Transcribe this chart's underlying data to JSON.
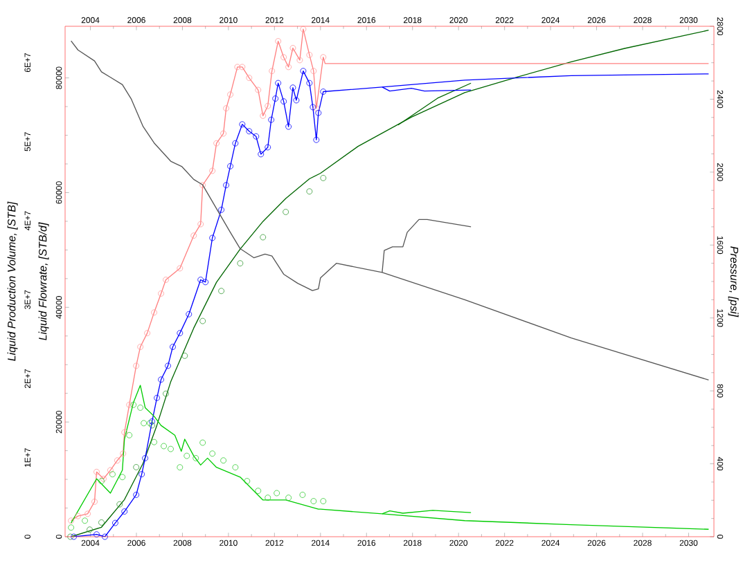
{
  "chart_data": {
    "type": "line",
    "ylabel": "Liquid Flowrate, [STB/d]",
    "y2label": "Pressure, [psi]",
    "y3label": "Liquid Production Volume, [STB]",
    "xlim": [
      2002.9,
      2031.1
    ],
    "xticks": [
      2004,
      2006,
      2008,
      2010,
      2012,
      2014,
      2016,
      2018,
      2020,
      2022,
      2024,
      2026,
      2028,
      2030
    ],
    "x2lim": [
      2002.9,
      2031.1
    ],
    "x2ticks": [
      2004,
      2006,
      2008,
      2010,
      2012,
      2014,
      2016,
      2018,
      2020,
      2022,
      2024,
      2026,
      2028,
      2030
    ],
    "ylim": [
      0,
      89000
    ],
    "yticks": [
      0,
      20000,
      40000,
      60000,
      80000
    ],
    "y2lim": [
      0,
      2800
    ],
    "y2ticks": [
      0,
      400,
      800,
      1200,
      1600,
      2000,
      2400,
      2800
    ],
    "y3lim": [
      0,
      64600000
    ],
    "y3ticks": [
      0,
      {
        "value": 10000000,
        "label": "1E+7"
      },
      {
        "value": 20000000,
        "label": "2E+7"
      },
      {
        "value": 30000000,
        "label": "3E+7"
      },
      {
        "value": 40000000,
        "label": "4E+7"
      },
      {
        "value": 50000000,
        "label": "5E+7"
      },
      {
        "value": 60000000,
        "label": "6E+7"
      }
    ],
    "series": [
      {
        "color": "#ff8080",
        "x": [
          2003.16,
          2003.46,
          2003.88,
          2004.18,
          2004.27,
          2004.57,
          2004.87,
          2005.17,
          2005.42,
          2005.48,
          2005.69,
          2005.99,
          2006.17,
          2006.47,
          2006.77,
          2007.07,
          2007.28,
          2007.89,
          2008.49,
          2008.79,
          2008.88,
          2009.3,
          2009.48,
          2009.78,
          2009.9,
          2010.08,
          2010.39,
          2010.6,
          2010.9,
          2011.29,
          2011.5,
          2011.71,
          2011.89,
          2012.16,
          2012.4,
          2012.61,
          2012.8,
          2013.1,
          2013.25,
          2013.52,
          2013.7,
          2013.82,
          2014.12,
          2014.2,
          2030.87
        ],
        "values": [
          2800,
          3600,
          4000,
          6100,
          11300,
          10100,
          11600,
          13300,
          14500,
          18200,
          23000,
          29800,
          33100,
          35500,
          39100,
          42400,
          44800,
          46800,
          52500,
          54500,
          61300,
          63800,
          68600,
          70300,
          74700,
          77100,
          81900,
          81900,
          80000,
          77900,
          73400,
          75100,
          81200,
          86400,
          83600,
          81900,
          85200,
          83100,
          88500,
          84000,
          81200,
          74700,
          83600,
          82500,
          82500
        ]
      },
      {
        "type": "scatter",
        "marker": "circle",
        "color": "#ff9999",
        "x": [
          2003.16,
          2003.46,
          2003.88,
          2004.18,
          2004.27,
          2004.57,
          2004.87,
          2005.17,
          2005.42,
          2005.48,
          2005.69,
          2005.99,
          2006.17,
          2006.47,
          2006.77,
          2007.07,
          2007.28,
          2007.89,
          2008.49,
          2008.79,
          2008.88,
          2009.3,
          2009.48,
          2009.78,
          2009.9,
          2010.08,
          2010.39,
          2010.6,
          2010.9,
          2011.29,
          2011.5,
          2011.71,
          2011.89,
          2012.16,
          2012.4,
          2012.61,
          2012.8,
          2013.1,
          2013.25,
          2013.52,
          2013.7,
          2013.82,
          2014.12
        ],
        "values": [
          2800,
          3600,
          4000,
          6100,
          11300,
          10100,
          11600,
          13300,
          14500,
          18200,
          23000,
          29800,
          33100,
          35500,
          39100,
          42400,
          44800,
          46800,
          52500,
          54500,
          61300,
          63800,
          68600,
          70300,
          74700,
          77100,
          81900,
          81900,
          80000,
          77900,
          73400,
          75100,
          81200,
          86400,
          83600,
          81900,
          85200,
          83100,
          88500,
          84000,
          81200,
          74700,
          83600
        ]
      },
      {
        "color": "#0000ff",
        "x": [
          2003.28,
          2004.27,
          2004.63,
          2005.08,
          2005.48,
          2005.99,
          2006.23,
          2006.38,
          2006.68,
          2006.89,
          2007.07,
          2007.37,
          2007.58,
          2007.89,
          2008.28,
          2008.79,
          2009.0,
          2009.3,
          2009.69,
          2009.9,
          2010.08,
          2010.3,
          2010.6,
          2010.9,
          2011.2,
          2011.41,
          2011.71,
          2011.86,
          2012.04,
          2012.16,
          2012.4,
          2012.61,
          2012.8,
          2012.95,
          2013.25,
          2013.52,
          2013.67,
          2013.82,
          2013.91,
          2014.12,
          2016.68,
          2020.27,
          2024.9,
          2030.87
        ],
        "values": [
          0,
          400,
          0,
          2400,
          4400,
          7300,
          10900,
          13700,
          20100,
          24200,
          27400,
          29800,
          33100,
          35500,
          38800,
          44800,
          44400,
          52100,
          57000,
          61300,
          64600,
          68600,
          71900,
          70700,
          69800,
          66700,
          67900,
          72700,
          76400,
          79100,
          75900,
          71500,
          78300,
          76100,
          81200,
          79100,
          74900,
          69200,
          73900,
          77600,
          78400,
          79600,
          80400,
          80700
        ]
      },
      {
        "color": "#0000ff",
        "x": [
          2016.68,
          2017.01,
          2017.95,
          2018.52,
          2020.54
        ],
        "values": [
          78400,
          77700,
          78200,
          77700,
          77900
        ]
      },
      {
        "type": "scatter",
        "marker": "circle",
        "color": "#0000ff",
        "x": [
          2003.28,
          2004.27,
          2004.63,
          2005.08,
          2005.48,
          2005.99,
          2006.23,
          2006.38,
          2006.68,
          2006.89,
          2007.07,
          2007.37,
          2007.58,
          2007.89,
          2008.28,
          2008.79,
          2009.0,
          2009.3,
          2009.69,
          2009.9,
          2010.08,
          2010.3,
          2010.6,
          2010.9,
          2011.2,
          2011.41,
          2011.71,
          2011.86,
          2012.04,
          2012.16,
          2012.4,
          2012.61,
          2012.8,
          2012.95,
          2013.25,
          2013.52,
          2013.67,
          2013.82,
          2013.91,
          2014.12
        ],
        "values": [
          0,
          400,
          0,
          2400,
          4400,
          7300,
          10900,
          13700,
          20100,
          24200,
          27400,
          29800,
          33100,
          35500,
          38800,
          44800,
          44400,
          52100,
          57000,
          61300,
          64600,
          68600,
          71900,
          70700,
          69800,
          66700,
          67900,
          72700,
          76400,
          79100,
          75900,
          71500,
          78300,
          76100,
          81200,
          79100,
          74900,
          69200,
          73900,
          77600
        ]
      },
      {
        "color": "#00cc00",
        "x": [
          2003.16,
          2004.27,
          2004.87,
          2005.39,
          2005.48,
          2005.87,
          2006.17,
          2006.38,
          2006.77,
          2007.07,
          2007.67,
          2007.95,
          2008.1,
          2008.49,
          2008.79,
          2009.09,
          2009.48,
          2010.51,
          2011.5,
          2012.49,
          2013.91,
          2014.0,
          2016.68,
          2020.27,
          2024.9,
          2030.87
        ],
        "values": [
          2400,
          10100,
          7600,
          11600,
          17000,
          23400,
          26400,
          22500,
          21000,
          19400,
          17700,
          14900,
          17000,
          14100,
          12500,
          13700,
          12100,
          10400,
          6400,
          6400,
          4800,
          4800,
          4000,
          2800,
          2100,
          1300
        ]
      },
      {
        "color": "#00cc00",
        "x": [
          2016.68,
          2017.01,
          2017.58,
          2018.88,
          2020.54
        ],
        "values": [
          4000,
          4500,
          4100,
          4600,
          4200
        ]
      },
      {
        "type": "scatter",
        "marker": "circle",
        "color": "#33cc33",
        "x": [
          2003.16,
          2003.76,
          2004.48,
          2004.96,
          2005.39,
          2005.69,
          2005.87,
          2006.17,
          2006.32,
          2006.59,
          2006.77,
          2007.19,
          2007.49,
          2007.89,
          2008.19,
          2008.58,
          2008.88,
          2009.3,
          2009.78,
          2010.3,
          2010.81,
          2011.29,
          2011.71,
          2012.1,
          2012.61,
          2013.22,
          2013.7,
          2014.12
        ],
        "values": [
          1600,
          2800,
          9700,
          10900,
          10400,
          17700,
          23000,
          22500,
          19800,
          19800,
          16500,
          15800,
          15300,
          12100,
          14100,
          13700,
          16400,
          14500,
          13300,
          12100,
          9700,
          8000,
          6800,
          7600,
          6800,
          7300,
          6200,
          6200
        ]
      },
      {
        "type": "scatter",
        "marker": "circle",
        "axis": "y3",
        "color": "#339933",
        "x": [
          2003.13,
          2003.97,
          2004.48,
          2005.27,
          2005.99,
          2006.68,
          2007.28,
          2008.1,
          2008.88,
          2009.69,
          2010.51,
          2011.5,
          2012.49,
          2013.52,
          2014.12
        ],
        "values": [
          0,
          900000,
          1800000,
          4100000,
          8800000,
          14100000,
          18100000,
          22900000,
          27300000,
          31100000,
          34600000,
          37900000,
          41100000,
          43700000,
          45400000
        ]
      },
      {
        "axis": "y3",
        "color": "#006600",
        "x": [
          2003.16,
          2004.48,
          2005.48,
          2006.29,
          2006.89,
          2007.49,
          2008.49,
          2009.48,
          2010.51,
          2011.5,
          2012.49,
          2013.52,
          2014.0,
          2015.63,
          2017.95,
          2020.27,
          2022.58,
          2024.9,
          2027.22,
          2030.87
        ],
        "values": [
          0,
          1200000,
          4700000,
          9300000,
          14100000,
          19600000,
          26400000,
          32200000,
          36400000,
          39900000,
          42800000,
          45300000,
          46000000,
          49400000,
          53100000,
          56200000,
          58200000,
          60100000,
          61800000,
          64100000
        ]
      },
      {
        "axis": "y3",
        "color": "#006600",
        "x": [
          2017.37,
          2019.09,
          2020.54
        ],
        "values": [
          52100000,
          55500000,
          57400000
        ]
      },
      {
        "axis": "y2",
        "color": "#555555",
        "x": [
          2003.16,
          2003.46,
          2004.18,
          2004.48,
          2004.87,
          2005.39,
          2005.78,
          2006.29,
          2006.77,
          2007.49,
          2007.98,
          2008.49,
          2008.88,
          2009.48,
          2010.08,
          2010.51,
          2011.11,
          2011.59,
          2011.89,
          2012.4,
          2013.01,
          2013.65,
          2013.91,
          2014.0,
          2014.69,
          2016.68,
          2020.27,
          2024.9,
          2030.87
        ],
        "values": [
          2720,
          2670,
          2610,
          2550,
          2520,
          2480,
          2400,
          2250,
          2160,
          2060,
          2030,
          1960,
          1930,
          1800,
          1670,
          1580,
          1530,
          1550,
          1540,
          1440,
          1390,
          1350,
          1360,
          1420,
          1500,
          1450,
          1300,
          1090,
          860
        ]
      },
      {
        "axis": "y2",
        "color": "#555555",
        "x": [
          2016.68,
          2016.77,
          2017.13,
          2017.58,
          2017.77,
          2018.28,
          2018.64,
          2020.54
        ],
        "values": [
          1450,
          1570,
          1590,
          1590,
          1670,
          1740,
          1740,
          1700
        ]
      }
    ]
  }
}
